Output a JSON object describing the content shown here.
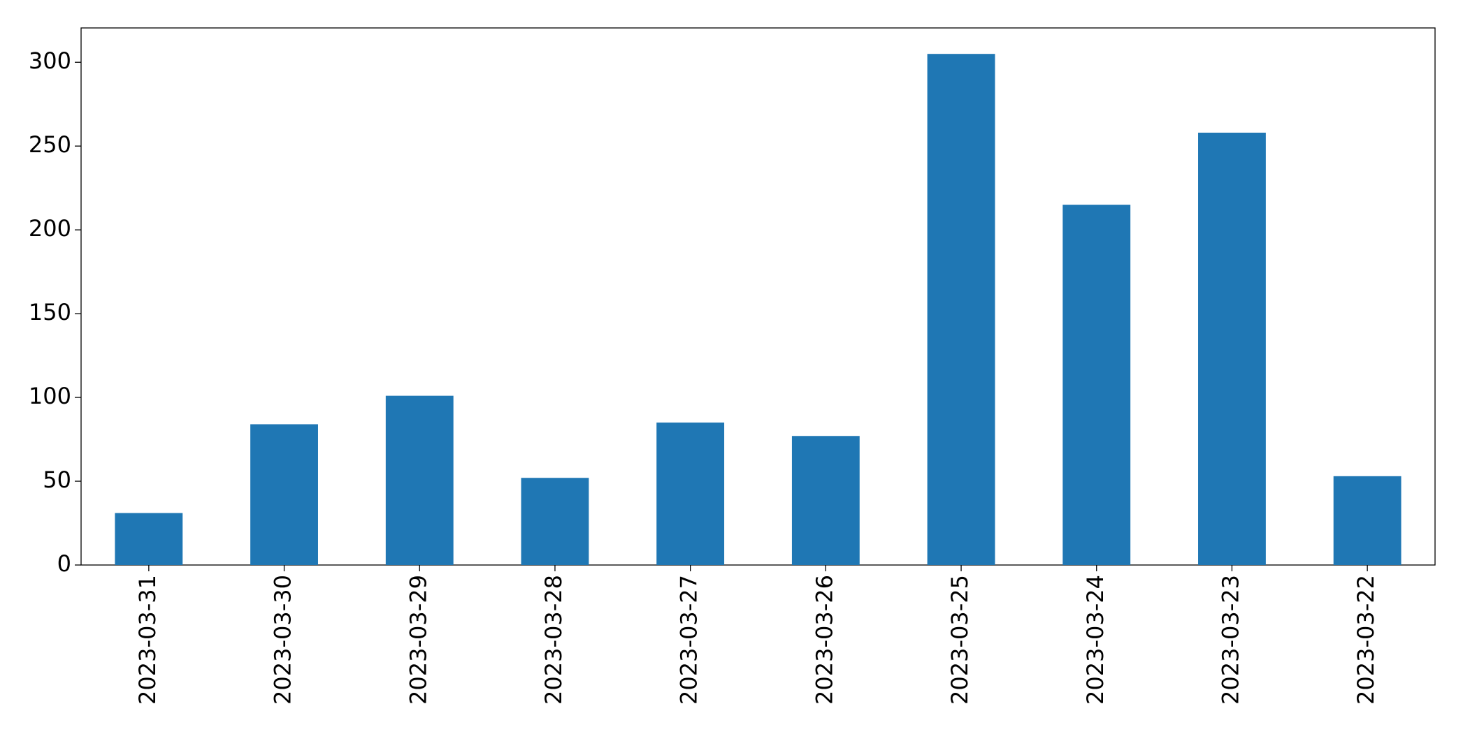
{
  "chart_data": {
    "type": "bar",
    "categories": [
      "2023-03-31",
      "2023-03-30",
      "2023-03-29",
      "2023-03-28",
      "2023-03-27",
      "2023-03-26",
      "2023-03-25",
      "2023-03-24",
      "2023-03-23",
      "2023-03-22"
    ],
    "values": [
      31,
      84,
      101,
      52,
      85,
      77,
      305,
      215,
      258,
      53
    ],
    "color": "#1f77b4",
    "ylim": [
      0,
      320.5
    ],
    "yticks": [
      0,
      50,
      100,
      150,
      200,
      250,
      300
    ],
    "grid": false
  }
}
